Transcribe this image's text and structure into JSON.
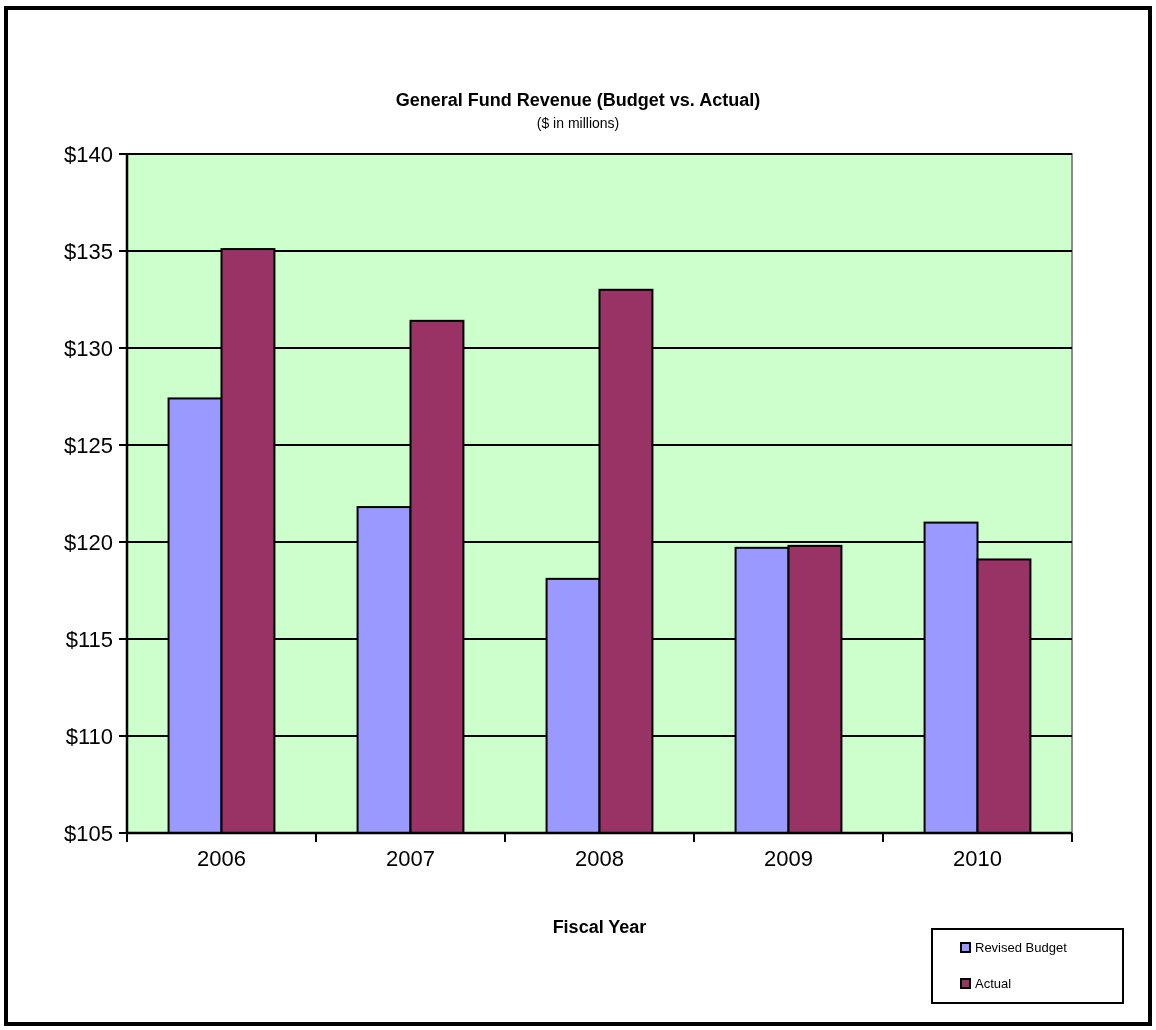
{
  "chart_data": {
    "type": "bar",
    "title": "General Fund Revenue (Budget vs. Actual)",
    "subtitle": "($ in millions)",
    "xlabel": "Fiscal Year",
    "categories": [
      "2006",
      "2007",
      "2008",
      "2009",
      "2010"
    ],
    "series": [
      {
        "name": "Revised Budget",
        "color": "#9999ff",
        "values": [
          127.4,
          121.8,
          118.1,
          119.7,
          121.0
        ]
      },
      {
        "name": "Actual",
        "color": "#993366",
        "values": [
          135.1,
          131.4,
          133.0,
          119.8,
          119.1
        ]
      }
    ],
    "ylim": [
      105,
      140
    ],
    "yticks": [
      {
        "value": 105,
        "label": "$105"
      },
      {
        "value": 110,
        "label": "$110"
      },
      {
        "value": 115,
        "label": "$115"
      },
      {
        "value": 120,
        "label": "$120"
      },
      {
        "value": 125,
        "label": "$125"
      },
      {
        "value": 130,
        "label": "$130"
      },
      {
        "value": 135,
        "label": "$135"
      },
      {
        "value": 140,
        "label": "$140"
      }
    ],
    "grid": "y",
    "legend": "bottom right"
  }
}
